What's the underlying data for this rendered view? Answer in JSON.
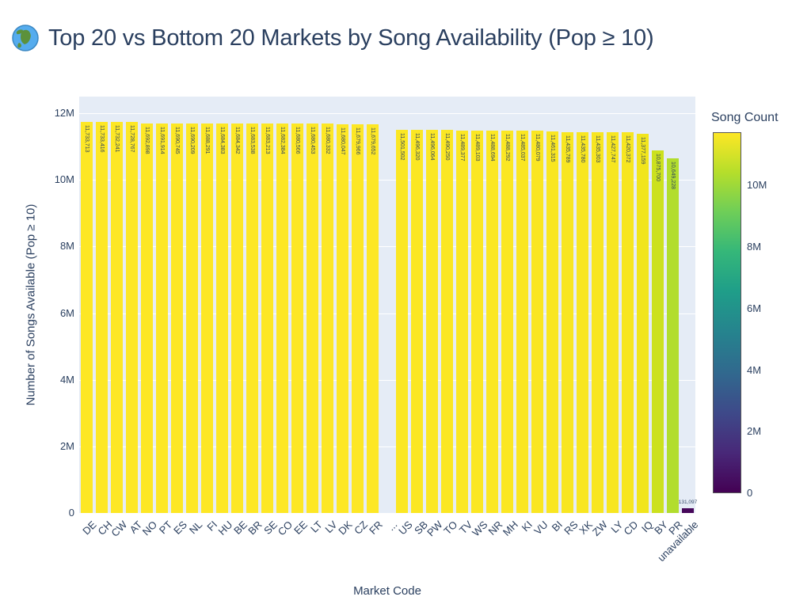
{
  "title": {
    "emoji": "🌍",
    "text": "Top 20 vs Bottom 20 Markets by Song Availability (Pop ≥ 10)"
  },
  "colors": {
    "plot_background": "#e5ecf6",
    "text": "#2a3f5f",
    "gridline": "#ffffff",
    "top_bar_yellow": "#fde725",
    "unavailable_purple": "#46075a"
  },
  "chart_data": {
    "type": "bar",
    "title": "🌍 Top 20 vs Bottom 20 Markets by Song Availability (Pop ≥ 10)",
    "xlabel": "Market Code",
    "ylabel": "Number of Songs Available (Pop ≥ 10)",
    "ylim": [
      0,
      12500000
    ],
    "yticks": [
      "0",
      "2M",
      "4M",
      "6M",
      "8M",
      "10M",
      "12M"
    ],
    "grid": "white horizontal gridlines on light blue-gray panel",
    "legend_position": "right colorbar",
    "colorbar": {
      "title": "Song Count",
      "colormap": "viridis",
      "cmin": 0,
      "cmax": 11733713,
      "ticks": [
        "0",
        "2M",
        "4M",
        "6M",
        "8M",
        "10M"
      ]
    },
    "categories": [
      "DE",
      "CH",
      "CW",
      "AT",
      "NO",
      "PT",
      "ES",
      "NL",
      "FI",
      "HU",
      "BE",
      "BR",
      "SE",
      "CO",
      "EE",
      "LT",
      "LV",
      "DK",
      "CZ",
      "FR",
      "...",
      "US",
      "SB",
      "PW",
      "TO",
      "TV",
      "WS",
      "NR",
      "MH",
      "KI",
      "VU",
      "BI",
      "RS",
      "XK",
      "ZW",
      "LY",
      "CD",
      "IQ",
      "BY",
      "PR",
      "unavailable"
    ],
    "values": [
      11733713,
      11733416,
      11732241,
      11728767,
      11692898,
      11691914,
      11690745,
      11690209,
      11688291,
      11684383,
      11684342,
      11683538,
      11683213,
      11682384,
      11680566,
      11680453,
      11680332,
      11680047,
      11679966,
      11679652,
      null,
      11501502,
      11496320,
      11496064,
      11490250,
      11489377,
      11489103,
      11488694,
      11488292,
      11485037,
      11480079,
      11461315,
      11435789,
      11435780,
      11435303,
      11427747,
      11420372,
      11377159,
      10875700,
      10649228,
      131097
    ],
    "labels": [
      "11,733,713",
      "11,733,416",
      "11,732,241",
      "11,728,767",
      "11,692,898",
      "11,691,914",
      "11,690,745",
      "11,690,209",
      "11,688,291",
      "11,684,383",
      "11,684,342",
      "11,683,538",
      "11,683,213",
      "11,682,384",
      "11,680,566",
      "11,680,453",
      "11,680,332",
      "11,680,047",
      "11,679,966",
      "11,679,652",
      null,
      "11,501,502",
      "11,496,320",
      "11,496,064",
      "11,490,250",
      "11,489,377",
      "11,489,103",
      "11,488,694",
      "11,488,292",
      "11,485,037",
      "11,480,079",
      "11,461,315",
      "11,435,789",
      "11,435,780",
      "11,435,303",
      "11,427,747",
      "11,420,372",
      "11,377,159",
      "10,875,700",
      "10,649,228",
      "131,097"
    ],
    "bar_colors": [
      "#fde725",
      "#fde725",
      "#fde725",
      "#fde725",
      "#fde725",
      "#fde725",
      "#fde725",
      "#fde725",
      "#fde725",
      "#fde725",
      "#fde725",
      "#fde725",
      "#fde725",
      "#fde725",
      "#fde725",
      "#fde725",
      "#fde725",
      "#fde725",
      "#fde725",
      "#fde725",
      null,
      "#fbe723",
      "#fbe723",
      "#fbe723",
      "#fbe723",
      "#fbe723",
      "#fbe723",
      "#fbe723",
      "#fbe723",
      "#fae622",
      "#fae622",
      "#f9e621",
      "#f8e621",
      "#f8e621",
      "#f8e621",
      "#f7e620",
      "#f7e620",
      "#f1e51c",
      "#cce11e",
      "#b2dd2d",
      "#46075a"
    ]
  }
}
